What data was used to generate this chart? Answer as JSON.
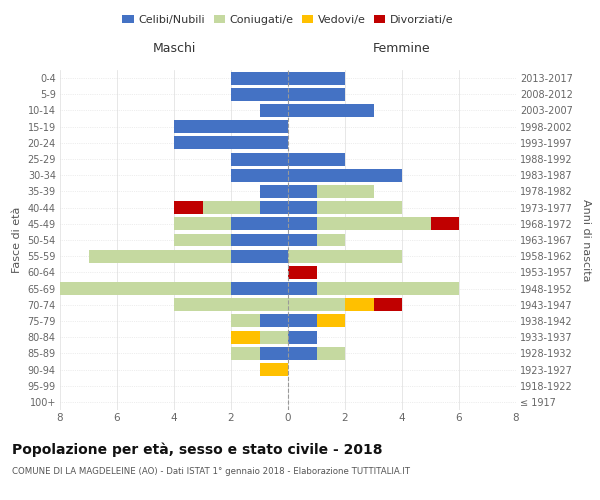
{
  "age_groups": [
    "100+",
    "95-99",
    "90-94",
    "85-89",
    "80-84",
    "75-79",
    "70-74",
    "65-69",
    "60-64",
    "55-59",
    "50-54",
    "45-49",
    "40-44",
    "35-39",
    "30-34",
    "25-29",
    "20-24",
    "15-19",
    "10-14",
    "5-9",
    "0-4"
  ],
  "birth_years": [
    "≤ 1917",
    "1918-1922",
    "1923-1927",
    "1928-1932",
    "1933-1937",
    "1938-1942",
    "1943-1947",
    "1948-1952",
    "1953-1957",
    "1958-1962",
    "1963-1967",
    "1968-1972",
    "1973-1977",
    "1978-1982",
    "1983-1987",
    "1988-1992",
    "1993-1997",
    "1998-2002",
    "2003-2007",
    "2008-2012",
    "2013-2017"
  ],
  "male_celibi": [
    0,
    0,
    0,
    1,
    0,
    1,
    0,
    2,
    0,
    2,
    2,
    2,
    1,
    1,
    2,
    2,
    4,
    4,
    1,
    2,
    2
  ],
  "male_coniugati": [
    0,
    0,
    0,
    1,
    1,
    1,
    4,
    6,
    0,
    5,
    2,
    2,
    2,
    0,
    0,
    0,
    0,
    0,
    0,
    0,
    0
  ],
  "male_vedovi": [
    0,
    0,
    1,
    0,
    1,
    0,
    0,
    0,
    0,
    0,
    0,
    0,
    0,
    0,
    0,
    0,
    0,
    0,
    0,
    0,
    0
  ],
  "male_divorziati": [
    0,
    0,
    0,
    0,
    0,
    0,
    0,
    0,
    0,
    0,
    0,
    0,
    1,
    0,
    0,
    0,
    0,
    0,
    0,
    0,
    0
  ],
  "female_celibi": [
    0,
    0,
    0,
    1,
    1,
    1,
    0,
    1,
    0,
    0,
    1,
    1,
    1,
    1,
    4,
    2,
    0,
    0,
    3,
    2,
    2
  ],
  "female_coniugati": [
    0,
    0,
    0,
    1,
    0,
    0,
    2,
    5,
    0,
    4,
    1,
    4,
    3,
    2,
    0,
    0,
    0,
    0,
    0,
    0,
    0
  ],
  "female_vedovi": [
    0,
    0,
    0,
    0,
    0,
    1,
    1,
    0,
    0,
    0,
    0,
    0,
    0,
    0,
    0,
    0,
    0,
    0,
    0,
    0,
    0
  ],
  "female_divorziati": [
    0,
    0,
    0,
    0,
    0,
    0,
    1,
    0,
    1,
    0,
    0,
    1,
    0,
    0,
    0,
    0,
    0,
    0,
    0,
    0,
    0
  ],
  "color_celibi": "#4472c4",
  "color_coniugati": "#c5d9a0",
  "color_vedovi": "#ffc000",
  "color_divorziati": "#c00000",
  "title": "Popolazione per età, sesso e stato civile - 2018",
  "subtitle": "COMUNE DI LA MAGDELEINE (AO) - Dati ISTAT 1° gennaio 2018 - Elaborazione TUTTITALIA.IT",
  "ylabel_left": "Fasce di età",
  "ylabel_right": "Anni di nascita",
  "xlabel_left": "Maschi",
  "xlabel_right": "Femmine",
  "xlim": 8,
  "legend_labels": [
    "Celibi/Nubili",
    "Coniugati/e",
    "Vedovi/e",
    "Divorziati/e"
  ],
  "bg_color": "#ffffff",
  "grid_color": "#cccccc"
}
